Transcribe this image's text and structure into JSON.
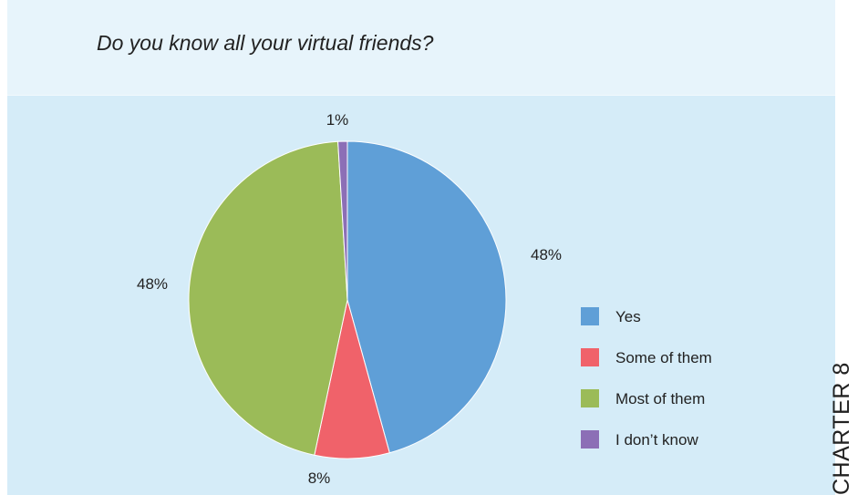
{
  "page": {
    "chapter_label": "CHARTER 8"
  },
  "chart_data": {
    "type": "pie",
    "title": "Do you know all your virtual friends?",
    "slices": [
      {
        "label": "Yes",
        "value": 48,
        "display": "48%",
        "color": "#5f9fd7"
      },
      {
        "label": "Some of them",
        "value": 8,
        "display": "8%",
        "color": "#f0626a"
      },
      {
        "label": "Most of them",
        "value": 48,
        "display": "48%",
        "color": "#9bbb58"
      },
      {
        "label": "I don’t know",
        "value": 1,
        "display": "1%",
        "color": "#8c6fb6"
      }
    ],
    "legend": {
      "placement": "right",
      "entries": [
        "Yes",
        "Some of them",
        "Most of them",
        "I don’t know"
      ]
    }
  }
}
